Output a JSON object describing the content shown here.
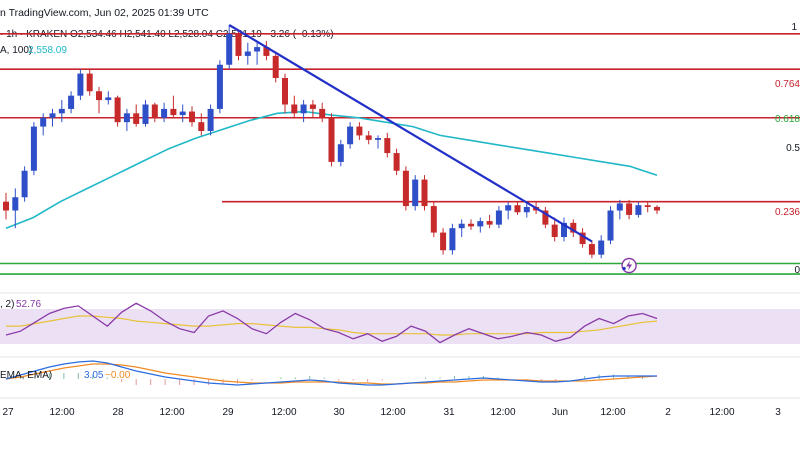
{
  "header": {
    "published": "n TradingView.com, Jun 02, 2025 01:39 UTC",
    "ohlc": "· 1h · KRAKEN  O2,534.46  H2,541.40  L2,528.04  C2,531.19  −3.26 (−0.13%)",
    "ma_label": "A, 100)",
    "ma_value": "2,558.09"
  },
  "indicators": {
    "rsi_label": ", 2)",
    "rsi_value": "52.76",
    "macd_label": "EMA, EMA)",
    "macd_value1": "3.05",
    "macd_value2": "−0.00"
  },
  "fib_labels": [
    "1",
    "0.764",
    "0.618",
    "0.5",
    "0.236",
    "0"
  ],
  "x_labels": [
    "27",
    "12:00",
    "28",
    "12:00",
    "29",
    "12:00",
    "30",
    "12:00",
    "31",
    "12:00",
    "Jun",
    "12:00",
    "2",
    "12:00",
    "3"
  ],
  "colors": {
    "up": "#2e4fc8",
    "down": "#c62a2a",
    "resistance": "#c8222c",
    "support": "#2aa83a",
    "trendline": "#2330c8",
    "ma": "#21b8c8",
    "rsi": "#8a3aa8",
    "rsi_ma": "#e8c23a",
    "rsi_band": "#ece0f4",
    "macd": "#2b6ce0",
    "signal": "#f08a24",
    "bolt": "#8a3aa8"
  },
  "chart_data": {
    "type": "candlestick",
    "timeframe": "1h",
    "symbol_exchange": "KRAKEN",
    "y_range": [
      2400,
      2700
    ],
    "candles": [
      {
        "o": 2500,
        "h": 2510,
        "l": 2480,
        "c": 2490
      },
      {
        "o": 2490,
        "h": 2515,
        "l": 2470,
        "c": 2505
      },
      {
        "o": 2505,
        "h": 2540,
        "l": 2500,
        "c": 2535
      },
      {
        "o": 2535,
        "h": 2590,
        "l": 2530,
        "c": 2585
      },
      {
        "o": 2585,
        "h": 2600,
        "l": 2575,
        "c": 2595
      },
      {
        "o": 2595,
        "h": 2605,
        "l": 2585,
        "c": 2600
      },
      {
        "o": 2600,
        "h": 2615,
        "l": 2590,
        "c": 2605
      },
      {
        "o": 2605,
        "h": 2625,
        "l": 2600,
        "c": 2620
      },
      {
        "o": 2620,
        "h": 2650,
        "l": 2615,
        "c": 2645
      },
      {
        "o": 2645,
        "h": 2650,
        "l": 2620,
        "c": 2625
      },
      {
        "o": 2625,
        "h": 2630,
        "l": 2600,
        "c": 2615
      },
      {
        "o": 2615,
        "h": 2625,
        "l": 2610,
        "c": 2618
      },
      {
        "o": 2618,
        "h": 2620,
        "l": 2585,
        "c": 2590
      },
      {
        "o": 2590,
        "h": 2605,
        "l": 2580,
        "c": 2600
      },
      {
        "o": 2600,
        "h": 2610,
        "l": 2585,
        "c": 2588
      },
      {
        "o": 2588,
        "h": 2615,
        "l": 2585,
        "c": 2610
      },
      {
        "o": 2610,
        "h": 2612,
        "l": 2590,
        "c": 2595
      },
      {
        "o": 2595,
        "h": 2612,
        "l": 2590,
        "c": 2605
      },
      {
        "o": 2605,
        "h": 2620,
        "l": 2595,
        "c": 2598
      },
      {
        "o": 2598,
        "h": 2610,
        "l": 2590,
        "c": 2602
      },
      {
        "o": 2602,
        "h": 2608,
        "l": 2585,
        "c": 2590
      },
      {
        "o": 2590,
        "h": 2600,
        "l": 2575,
        "c": 2580
      },
      {
        "o": 2580,
        "h": 2610,
        "l": 2575,
        "c": 2605
      },
      {
        "o": 2605,
        "h": 2660,
        "l": 2600,
        "c": 2655
      },
      {
        "o": 2655,
        "h": 2700,
        "l": 2650,
        "c": 2690
      },
      {
        "o": 2690,
        "h": 2695,
        "l": 2660,
        "c": 2665
      },
      {
        "o": 2665,
        "h": 2680,
        "l": 2655,
        "c": 2670
      },
      {
        "o": 2670,
        "h": 2680,
        "l": 2655,
        "c": 2675
      },
      {
        "o": 2675,
        "h": 2682,
        "l": 2660,
        "c": 2665
      },
      {
        "o": 2665,
        "h": 2670,
        "l": 2635,
        "c": 2640
      },
      {
        "o": 2640,
        "h": 2645,
        "l": 2600,
        "c": 2610
      },
      {
        "o": 2610,
        "h": 2620,
        "l": 2595,
        "c": 2600
      },
      {
        "o": 2600,
        "h": 2615,
        "l": 2590,
        "c": 2610
      },
      {
        "o": 2610,
        "h": 2615,
        "l": 2595,
        "c": 2605
      },
      {
        "o": 2605,
        "h": 2612,
        "l": 2590,
        "c": 2595
      },
      {
        "o": 2595,
        "h": 2600,
        "l": 2540,
        "c": 2545
      },
      {
        "o": 2545,
        "h": 2570,
        "l": 2540,
        "c": 2565
      },
      {
        "o": 2565,
        "h": 2590,
        "l": 2560,
        "c": 2585
      },
      {
        "o": 2585,
        "h": 2590,
        "l": 2570,
        "c": 2575
      },
      {
        "o": 2575,
        "h": 2580,
        "l": 2565,
        "c": 2570
      },
      {
        "o": 2570,
        "h": 2575,
        "l": 2560,
        "c": 2572
      },
      {
        "o": 2572,
        "h": 2578,
        "l": 2550,
        "c": 2555
      },
      {
        "o": 2555,
        "h": 2560,
        "l": 2530,
        "c": 2535
      },
      {
        "o": 2535,
        "h": 2540,
        "l": 2490,
        "c": 2495
      },
      {
        "o": 2495,
        "h": 2530,
        "l": 2490,
        "c": 2525
      },
      {
        "o": 2525,
        "h": 2530,
        "l": 2490,
        "c": 2495
      },
      {
        "o": 2495,
        "h": 2500,
        "l": 2460,
        "c": 2465
      },
      {
        "o": 2465,
        "h": 2470,
        "l": 2440,
        "c": 2445
      },
      {
        "o": 2445,
        "h": 2475,
        "l": 2440,
        "c": 2470
      },
      {
        "o": 2470,
        "h": 2480,
        "l": 2460,
        "c": 2475
      },
      {
        "o": 2475,
        "h": 2480,
        "l": 2468,
        "c": 2472
      },
      {
        "o": 2472,
        "h": 2482,
        "l": 2465,
        "c": 2478
      },
      {
        "o": 2478,
        "h": 2485,
        "l": 2470,
        "c": 2474
      },
      {
        "o": 2474,
        "h": 2495,
        "l": 2470,
        "c": 2490
      },
      {
        "o": 2490,
        "h": 2500,
        "l": 2480,
        "c": 2496
      },
      {
        "o": 2496,
        "h": 2500,
        "l": 2485,
        "c": 2488
      },
      {
        "o": 2488,
        "h": 2498,
        "l": 2482,
        "c": 2494
      },
      {
        "o": 2494,
        "h": 2500,
        "l": 2486,
        "c": 2490
      },
      {
        "o": 2490,
        "h": 2494,
        "l": 2470,
        "c": 2474
      },
      {
        "o": 2474,
        "h": 2482,
        "l": 2455,
        "c": 2460
      },
      {
        "o": 2460,
        "h": 2482,
        "l": 2455,
        "c": 2476
      },
      {
        "o": 2476,
        "h": 2480,
        "l": 2460,
        "c": 2465
      },
      {
        "o": 2465,
        "h": 2470,
        "l": 2448,
        "c": 2452
      },
      {
        "o": 2452,
        "h": 2456,
        "l": 2436,
        "c": 2440
      },
      {
        "o": 2440,
        "h": 2462,
        "l": 2436,
        "c": 2456
      },
      {
        "o": 2456,
        "h": 2495,
        "l": 2452,
        "c": 2490
      },
      {
        "o": 2490,
        "h": 2502,
        "l": 2480,
        "c": 2498
      },
      {
        "o": 2498,
        "h": 2502,
        "l": 2480,
        "c": 2485
      },
      {
        "o": 2485,
        "h": 2500,
        "l": 2482,
        "c": 2496
      },
      {
        "o": 2496,
        "h": 2500,
        "l": 2488,
        "c": 2494
      },
      {
        "o": 2494,
        "h": 2496,
        "l": 2486,
        "c": 2490
      }
    ],
    "ma100": [
      2470,
      2482,
      2500,
      2515,
      2530,
      2545,
      2560,
      2572,
      2582,
      2592,
      2600,
      2602,
      2598,
      2595,
      2590,
      2585,
      2575,
      2570,
      2565,
      2560,
      2555,
      2550,
      2545,
      2540,
      2530
    ],
    "horizontal_lines": [
      {
        "price": 2690,
        "color": "resistance"
      },
      {
        "price": 2650,
        "color": "resistance"
      },
      {
        "price": 2595,
        "color": "resistance"
      },
      {
        "price": 2500,
        "color": "resistance"
      },
      {
        "price": 2430,
        "color": "support"
      },
      {
        "price": 2418,
        "color": "support"
      }
    ],
    "trendline": [
      [
        24,
        2700
      ],
      [
        63,
        2455
      ]
    ],
    "rsi": [
      45,
      48,
      55,
      62,
      66,
      68,
      60,
      52,
      63,
      70,
      64,
      56,
      50,
      47,
      60,
      64,
      58,
      50,
      46,
      55,
      62,
      57,
      50,
      47,
      42,
      46,
      40,
      44,
      52,
      48,
      39,
      45,
      50,
      46,
      42,
      44,
      47,
      45,
      40,
      43,
      52,
      58,
      54,
      60,
      62,
      58
    ],
    "rsi_ma": [
      52,
      52,
      54,
      56,
      58,
      60,
      60,
      59,
      58,
      56,
      55,
      54,
      53,
      52,
      52,
      53,
      54,
      54,
      53,
      52,
      51,
      51,
      50,
      49,
      47,
      46,
      46,
      46,
      46,
      46,
      45,
      45,
      46,
      46,
      46,
      46,
      46,
      47,
      47,
      47,
      48,
      49,
      51,
      53,
      55,
      56
    ],
    "macd": [
      0,
      4,
      8,
      12,
      15,
      17,
      18,
      16,
      12,
      8,
      5,
      2,
      0,
      -2,
      -4,
      -5,
      -6,
      -5,
      -4,
      -3,
      -2,
      -1,
      -2,
      -4,
      -5,
      -6,
      -6,
      -5,
      -4,
      -3,
      -2,
      -1,
      0,
      1,
      0,
      -1,
      -2,
      -3,
      -3,
      -2,
      0,
      2,
      3,
      3,
      3,
      3
    ],
    "signal": [
      0,
      2,
      5,
      8,
      11,
      13,
      15,
      15,
      14,
      12,
      9,
      6,
      4,
      2,
      0,
      -2,
      -3,
      -4,
      -4,
      -4,
      -3,
      -3,
      -3,
      -3,
      -4,
      -4,
      -5,
      -5,
      -4,
      -4,
      -3,
      -3,
      -2,
      -1,
      -1,
      -1,
      -1,
      -2,
      -2,
      -2,
      -2,
      -1,
      0,
      1,
      2,
      3
    ]
  }
}
